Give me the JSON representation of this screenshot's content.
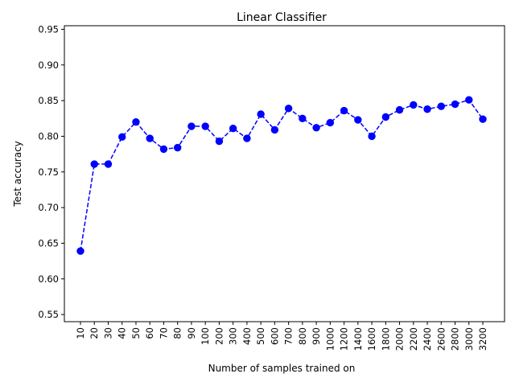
{
  "chart_data": {
    "type": "line",
    "title": "Linear Classifier",
    "xlabel": "Number of samples trained on",
    "ylabel": "Test accuracy",
    "ylim": [
      0.54,
      0.955
    ],
    "yticks": [
      "0.55",
      "0.60",
      "0.65",
      "0.70",
      "0.75",
      "0.80",
      "0.85",
      "0.90",
      "0.95"
    ],
    "grid": false,
    "legend": "none",
    "categories": [
      "10",
      "20",
      "30",
      "40",
      "50",
      "60",
      "70",
      "80",
      "90",
      "100",
      "200",
      "300",
      "400",
      "500",
      "600",
      "700",
      "800",
      "900",
      "1000",
      "1200",
      "1400",
      "1600",
      "1800",
      "2000",
      "2200",
      "2400",
      "2600",
      "2800",
      "3000",
      "3200"
    ],
    "series": [
      {
        "line_style": "dashed",
        "marker": "circle",
        "color": "#0000ff",
        "values": [
          0.639,
          0.761,
          0.761,
          0.799,
          0.82,
          0.797,
          0.782,
          0.784,
          0.814,
          0.814,
          0.793,
          0.811,
          0.797,
          0.831,
          0.809,
          0.839,
          0.825,
          0.812,
          0.819,
          0.836,
          0.823,
          0.8,
          0.827,
          0.837,
          0.844,
          0.838,
          0.842,
          0.845,
          0.851,
          0.824
        ]
      }
    ]
  }
}
